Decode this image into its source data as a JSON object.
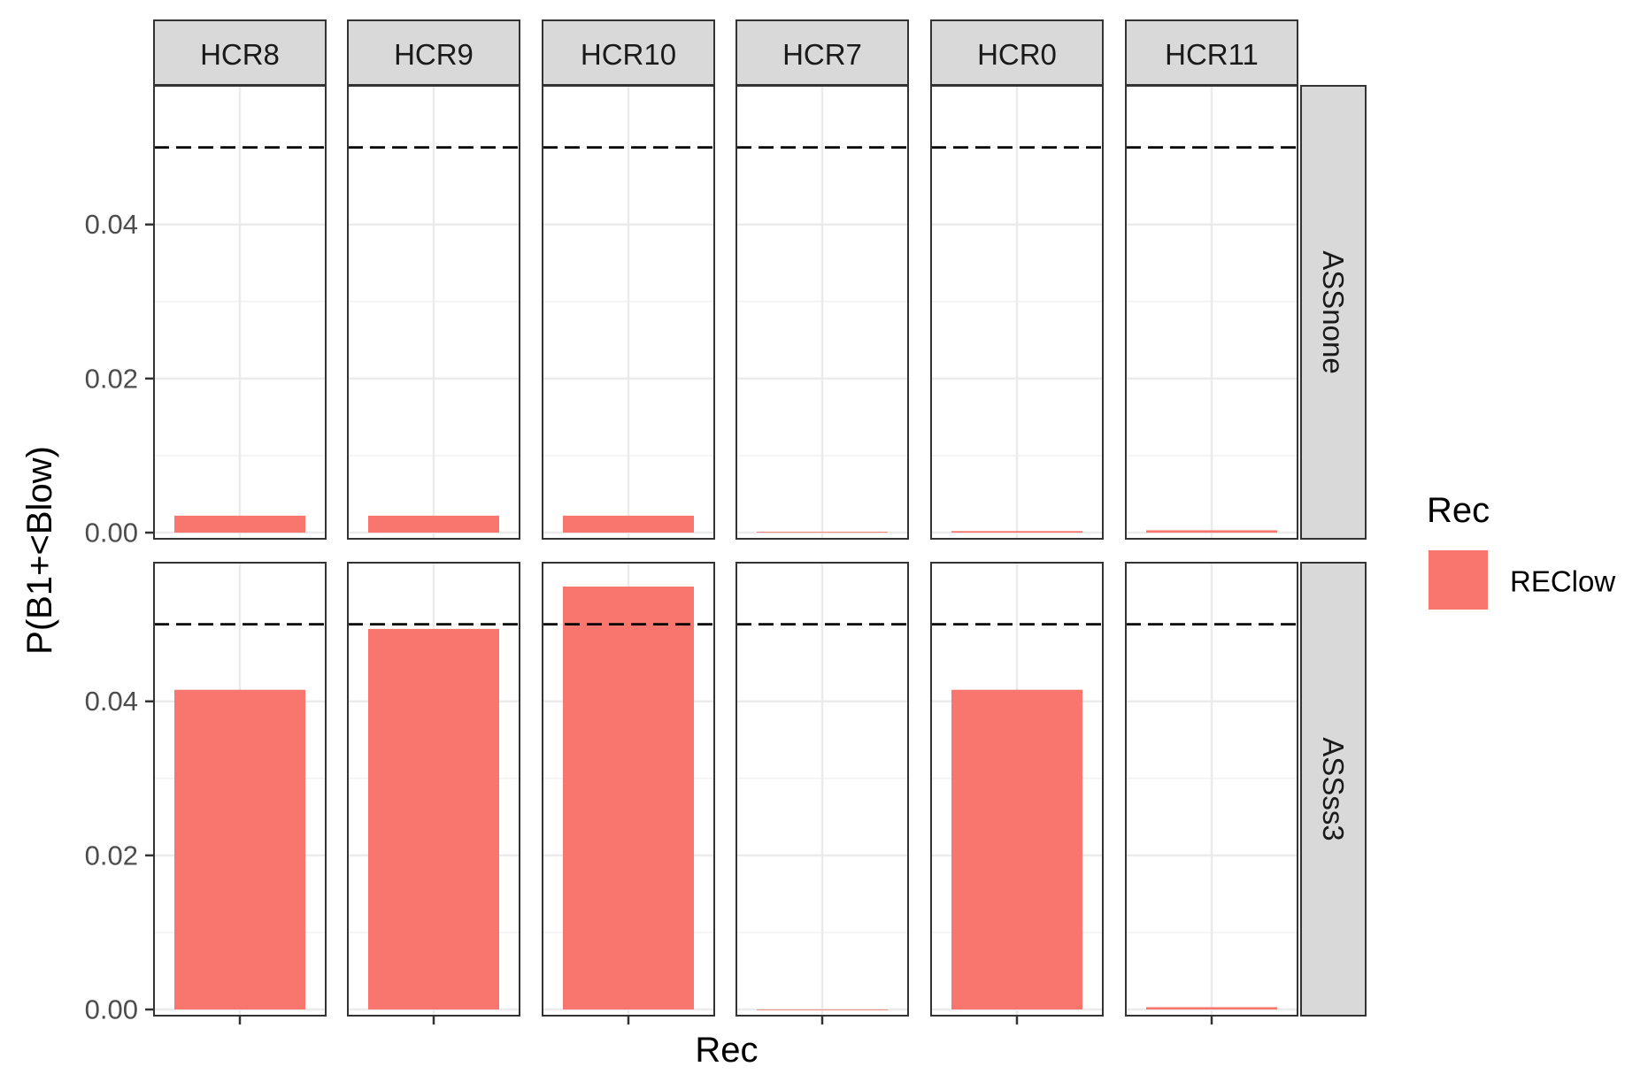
{
  "chart_data": {
    "type": "bar",
    "facet_columns": [
      "HCR8",
      "HCR9",
      "HCR10",
      "HCR7",
      "HCR0",
      "HCR11"
    ],
    "facet_rows": [
      "ASSnone",
      "ASSss3"
    ],
    "x_tick_labels": [
      ""
    ],
    "xlabel": "Rec",
    "ylabel": "P(B1+<Blow)",
    "ylim": [
      -0.0008,
      0.058
    ],
    "y_ticks": [
      0.0,
      0.02,
      0.04
    ],
    "y_tick_labels": [
      "0.00",
      "0.02",
      "0.04"
    ],
    "reference_line": {
      "y": 0.05,
      "style": "dashed",
      "color": "#000000"
    },
    "grid": true,
    "legend": {
      "title": "Rec",
      "placement": "right",
      "entries": [
        {
          "label": "REClow",
          "color": "#F8766D"
        }
      ]
    },
    "series": [
      {
        "name": "REClow",
        "color": "#F8766D",
        "values": {
          "ASSnone": [
            0.0022,
            0.0022,
            0.0022,
            0.0001,
            0.0002,
            0.0003
          ],
          "ASSss3": [
            0.0415,
            0.0494,
            0.0549,
            0.0,
            0.0415,
            0.0003
          ]
        }
      }
    ]
  }
}
